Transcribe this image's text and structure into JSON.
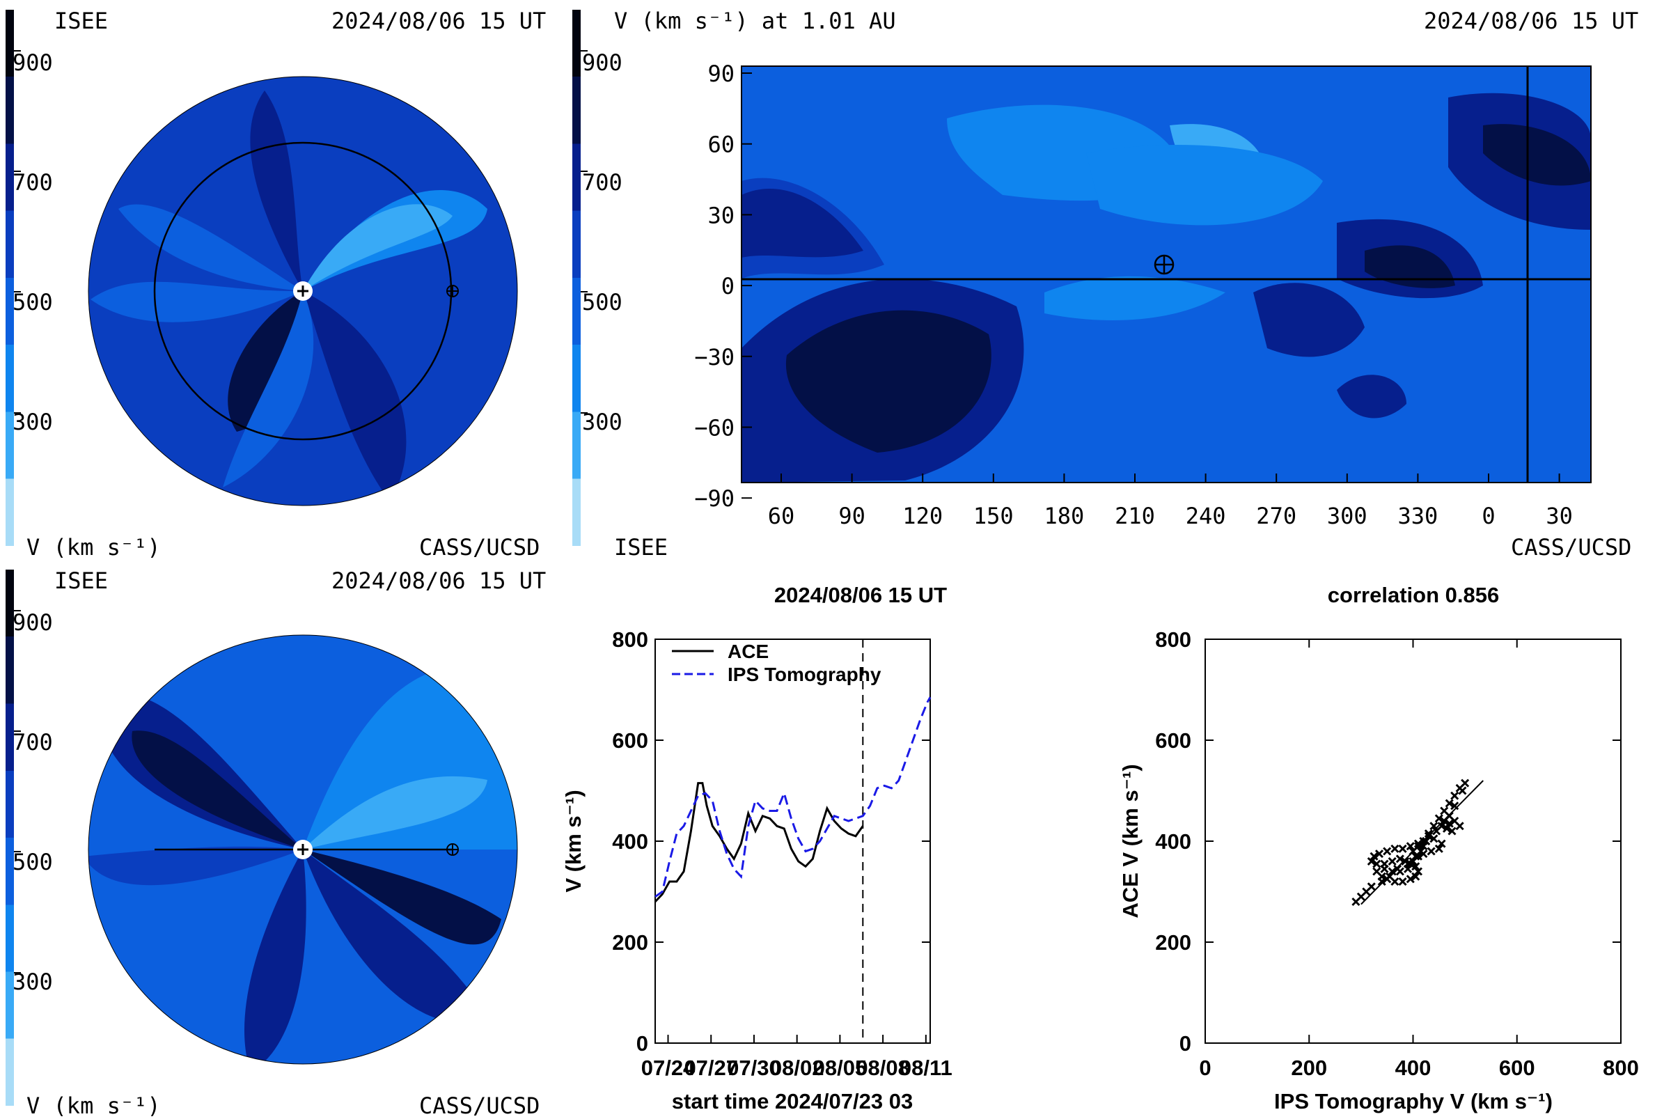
{
  "palette": [
    "#a8dcf7",
    "#39aaf6",
    "#0f85ef",
    "#0c5fde",
    "#0a3ebf",
    "#061f8d",
    "#031047",
    "#01040f"
  ],
  "colorbar": {
    "ticks": [
      "900",
      "700",
      "500",
      "300"
    ],
    "units": "V (km s⁻¹)"
  },
  "panels": {
    "polar_top": {
      "left_label": "ISEE",
      "datetime": "2024/08/06 15 UT",
      "units": "V (km s⁻¹)",
      "credit": "CASS/UCSD"
    },
    "polar_bottom": {
      "left_label": "ISEE",
      "datetime": "2024/08/06 15 UT",
      "units": "V (km s⁻¹)",
      "credit": "CASS/UCSD"
    },
    "map": {
      "title": "V (km s⁻¹) at 1.01 AU",
      "datetime": "2024/08/06 15 UT",
      "left_footer": "ISEE",
      "credit": "CASS/UCSD",
      "x_ticks": [
        "60",
        "90",
        "120",
        "150",
        "180",
        "210",
        "240",
        "270",
        "300",
        "330",
        "0",
        "30"
      ],
      "y_ticks": [
        "90",
        "60",
        "30",
        "0",
        "−30",
        "−60",
        "−90"
      ]
    }
  },
  "chart_data": [
    {
      "type": "line",
      "title": "2024/08/06 15 UT",
      "xlabel": "start time 2024/07/23 03",
      "ylabel": "V (km s⁻¹)",
      "ylim": [
        0,
        800
      ],
      "xlim_days": [
        0,
        19.2
      ],
      "x_tick_labels": [
        "07/24",
        "07/27",
        "07/30",
        "08/02",
        "08/05",
        "08/08",
        "08/11"
      ],
      "x_tick_days": [
        0.9,
        3.9,
        6.9,
        9.9,
        12.9,
        15.9,
        18.9
      ],
      "y_ticks": [
        0,
        200,
        400,
        600,
        800
      ],
      "now_marker_day": 14.5,
      "legend": "top-left",
      "series": [
        {
          "name": "ACE",
          "style": "solid",
          "color": "#000000",
          "x": [
            0,
            0.5,
            1,
            1.5,
            2,
            2.5,
            3,
            3.3,
            3.6,
            4,
            4.5,
            5,
            5.5,
            6,
            6.5,
            7,
            7.5,
            8,
            8.5,
            9,
            9.5,
            10,
            10.5,
            11,
            11.5,
            12,
            12.5,
            13,
            13.5,
            14,
            14.5
          ],
          "y": [
            280,
            295,
            320,
            320,
            340,
            420,
            515,
            515,
            470,
            430,
            410,
            385,
            365,
            395,
            455,
            420,
            450,
            445,
            430,
            425,
            385,
            360,
            350,
            365,
            420,
            465,
            440,
            425,
            415,
            410,
            430
          ]
        },
        {
          "name": "IPS Tomography",
          "style": "dashed",
          "color": "#1a1ae6",
          "x": [
            0,
            0.5,
            1,
            1.5,
            2,
            2.5,
            3,
            3.5,
            4,
            4.5,
            5,
            5.5,
            6,
            6.5,
            7,
            7.5,
            8,
            8.5,
            9,
            9.5,
            10,
            10.5,
            11,
            11.5,
            12,
            12.5,
            13,
            13.5,
            14,
            14.5,
            15,
            15.5,
            16,
            16.5,
            17,
            17.5,
            18,
            18.5,
            19,
            19.2
          ],
          "y": [
            290,
            300,
            360,
            415,
            430,
            460,
            490,
            495,
            480,
            420,
            375,
            345,
            330,
            430,
            480,
            465,
            460,
            460,
            495,
            445,
            405,
            380,
            385,
            400,
            425,
            450,
            445,
            440,
            445,
            450,
            470,
            505,
            510,
            505,
            520,
            560,
            600,
            640,
            675,
            685
          ]
        }
      ]
    },
    {
      "type": "scatter",
      "title": "correlation 0.856",
      "xlabel": "IPS Tomography V (km s⁻¹)",
      "ylabel": "ACE V (km s⁻¹)",
      "xlim": [
        0,
        800
      ],
      "ylim": [
        0,
        800
      ],
      "x_ticks": [
        0,
        200,
        400,
        600,
        800
      ],
      "y_ticks": [
        0,
        200,
        400,
        600,
        800
      ],
      "points": [
        [
          290,
          280
        ],
        [
          300,
          290
        ],
        [
          310,
          300
        ],
        [
          320,
          310
        ],
        [
          340,
          320
        ],
        [
          355,
          330
        ],
        [
          370,
          345
        ],
        [
          390,
          355
        ],
        [
          405,
          370
        ],
        [
          415,
          380
        ],
        [
          420,
          390
        ],
        [
          425,
          400
        ],
        [
          430,
          415
        ],
        [
          440,
          430
        ],
        [
          450,
          445
        ],
        [
          460,
          460
        ],
        [
          470,
          475
        ],
        [
          480,
          490
        ],
        [
          490,
          505
        ],
        [
          500,
          515
        ],
        [
          495,
          500
        ],
        [
          480,
          470
        ],
        [
          470,
          450
        ],
        [
          460,
          440
        ],
        [
          470,
          435
        ],
        [
          480,
          440
        ],
        [
          490,
          430
        ],
        [
          475,
          420
        ],
        [
          465,
          425
        ],
        [
          455,
          430
        ],
        [
          445,
          420
        ],
        [
          430,
          410
        ],
        [
          420,
          400
        ],
        [
          410,
          395
        ],
        [
          395,
          390
        ],
        [
          380,
          385
        ],
        [
          365,
          385
        ],
        [
          350,
          380
        ],
        [
          335,
          375
        ],
        [
          325,
          370
        ],
        [
          320,
          360
        ],
        [
          330,
          355
        ],
        [
          345,
          355
        ],
        [
          360,
          360
        ],
        [
          375,
          365
        ],
        [
          385,
          360
        ],
        [
          395,
          355
        ],
        [
          405,
          350
        ],
        [
          410,
          340
        ],
        [
          405,
          330
        ],
        [
          395,
          325
        ],
        [
          380,
          320
        ],
        [
          365,
          320
        ],
        [
          350,
          325
        ],
        [
          340,
          330
        ],
        [
          330,
          340
        ],
        [
          345,
          345
        ],
        [
          360,
          340
        ],
        [
          375,
          340
        ],
        [
          390,
          345
        ],
        [
          400,
          360
        ],
        [
          410,
          370
        ],
        [
          420,
          375
        ],
        [
          435,
          380
        ],
        [
          450,
          385
        ],
        [
          455,
          395
        ],
        [
          440,
          405
        ],
        [
          425,
          400
        ],
        [
          410,
          390
        ],
        [
          400,
          380
        ]
      ],
      "fit_line": {
        "x": [
          300,
          535
        ],
        "y": [
          275,
          520
        ]
      }
    }
  ]
}
